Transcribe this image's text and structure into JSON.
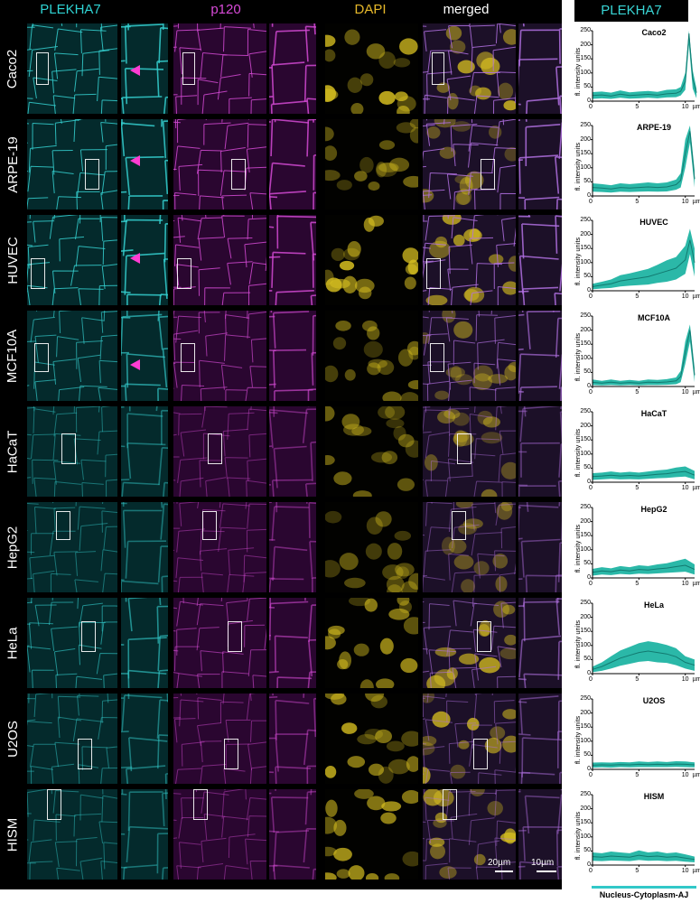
{
  "column_headers": [
    {
      "text": "PLEKHA7",
      "color": "#2fd3d3"
    },
    {
      "text": "p120",
      "color": "#d84ad8"
    },
    {
      "text": "DAPI",
      "color": "#e6b82a"
    },
    {
      "text": "merged",
      "color": "#ffffff"
    }
  ],
  "right_header": "PLEKHA7",
  "rows": [
    {
      "label": "Caco2",
      "arrow": true
    },
    {
      "label": "ARPE-19",
      "arrow": true
    },
    {
      "label": "HUVEC",
      "arrow": true
    },
    {
      "label": "MCF10A",
      "arrow": true
    },
    {
      "label": "HaCaT",
      "arrow": false
    },
    {
      "label": "HepG2",
      "arrow": false
    },
    {
      "label": "HeLa",
      "arrow": false
    },
    {
      "label": "U2OS",
      "arrow": false
    },
    {
      "label": "HISM",
      "arrow": false
    }
  ],
  "scale_bars": [
    "20µm",
    "10µm"
  ],
  "axis_title": "fl. intensity units",
  "x_unit": "µm",
  "bottom_label": "Nucleus-Cytoplasm-AJ",
  "chart_data": [
    {
      "type": "area",
      "title": "Caco2",
      "xlabel": "",
      "ylabel": "fl. intensity units",
      "xlim": [
        0,
        11
      ],
      "ylim": [
        0,
        250
      ],
      "xticks": [
        0,
        5,
        10
      ],
      "yticks": [
        0,
        50,
        100,
        150,
        200,
        250
      ],
      "x": [
        0,
        1,
        2,
        3,
        4,
        5,
        6,
        7,
        8,
        9,
        9.5,
        10,
        10.4,
        10.8,
        11.2
      ],
      "y": [
        20,
        22,
        18,
        25,
        20,
        22,
        24,
        21,
        26,
        28,
        35,
        70,
        240,
        80,
        30
      ],
      "y_low": [
        8,
        10,
        8,
        12,
        9,
        10,
        12,
        10,
        13,
        14,
        20,
        40,
        200,
        45,
        10
      ],
      "y_high": [
        32,
        34,
        30,
        38,
        31,
        34,
        36,
        33,
        40,
        42,
        50,
        100,
        250,
        110,
        45
      ]
    },
    {
      "type": "area",
      "title": "ARPE-19",
      "xlabel": "",
      "ylabel": "fl. intensity units",
      "xlim": [
        0,
        11
      ],
      "ylim": [
        0,
        250
      ],
      "xticks": [
        0,
        5,
        10
      ],
      "yticks": [
        0,
        50,
        100,
        150,
        200,
        250
      ],
      "x": [
        0,
        1,
        2,
        3,
        4,
        5,
        6,
        7,
        8,
        9,
        9.5,
        10,
        10.5,
        11
      ],
      "y": [
        30,
        28,
        25,
        30,
        28,
        30,
        32,
        30,
        32,
        40,
        55,
        150,
        230,
        60
      ],
      "y_low": [
        15,
        14,
        12,
        15,
        14,
        15,
        16,
        15,
        16,
        22,
        30,
        100,
        190,
        30
      ],
      "y_high": [
        45,
        42,
        38,
        45,
        42,
        45,
        48,
        45,
        48,
        58,
        80,
        200,
        250,
        90
      ]
    },
    {
      "type": "area",
      "title": "HUVEC",
      "xlabel": "",
      "ylabel": "fl. intensity units",
      "xlim": [
        0,
        11
      ],
      "ylim": [
        0,
        250
      ],
      "xticks": [
        0,
        5,
        10
      ],
      "yticks": [
        0,
        50,
        100,
        150,
        200,
        250
      ],
      "x": [
        0,
        1,
        2,
        3,
        4,
        5,
        6,
        7,
        8,
        9,
        10,
        10.5,
        11
      ],
      "y": [
        15,
        20,
        25,
        35,
        40,
        45,
        50,
        60,
        70,
        80,
        110,
        180,
        100
      ],
      "y_low": [
        5,
        8,
        10,
        15,
        18,
        20,
        22,
        28,
        32,
        40,
        60,
        130,
        50
      ],
      "y_high": [
        25,
        32,
        40,
        55,
        62,
        70,
        78,
        92,
        108,
        120,
        160,
        220,
        150
      ]
    },
    {
      "type": "area",
      "title": "MCF10A",
      "xlabel": "",
      "ylabel": "fl. intensity units",
      "xlim": [
        0,
        11
      ],
      "ylim": [
        0,
        250
      ],
      "xticks": [
        0,
        5,
        10
      ],
      "yticks": [
        0,
        50,
        100,
        150,
        200,
        250
      ],
      "x": [
        0,
        1,
        2,
        3,
        4,
        5,
        6,
        7,
        8,
        9,
        9.5,
        10,
        10.5,
        11
      ],
      "y": [
        15,
        12,
        15,
        12,
        14,
        12,
        15,
        14,
        16,
        20,
        35,
        120,
        200,
        40
      ],
      "y_low": [
        5,
        4,
        5,
        4,
        5,
        4,
        5,
        5,
        6,
        8,
        15,
        80,
        160,
        15
      ],
      "y_high": [
        25,
        20,
        25,
        20,
        23,
        20,
        25,
        23,
        26,
        32,
        55,
        160,
        220,
        65
      ]
    },
    {
      "type": "area",
      "title": "HaCaT",
      "xlabel": "",
      "ylabel": "fl. intensity units",
      "xlim": [
        0,
        11
      ],
      "ylim": [
        0,
        250
      ],
      "xticks": [
        0,
        5,
        10
      ],
      "yticks": [
        0,
        50,
        100,
        150,
        200,
        250
      ],
      "x": [
        0,
        1,
        2,
        3,
        4,
        5,
        6,
        7,
        8,
        9,
        10,
        11
      ],
      "y": [
        20,
        22,
        25,
        22,
        24,
        22,
        25,
        28,
        30,
        35,
        38,
        25
      ],
      "y_low": [
        8,
        10,
        12,
        10,
        11,
        10,
        12,
        14,
        15,
        18,
        20,
        10
      ],
      "y_high": [
        32,
        34,
        38,
        34,
        37,
        34,
        38,
        42,
        45,
        52,
        56,
        40
      ]
    },
    {
      "type": "area",
      "title": "HepG2",
      "xlabel": "",
      "ylabel": "fl. intensity units",
      "xlim": [
        0,
        11
      ],
      "ylim": [
        0,
        250
      ],
      "xticks": [
        0,
        5,
        10
      ],
      "yticks": [
        0,
        50,
        100,
        150,
        200,
        250
      ],
      "x": [
        0,
        1,
        2,
        3,
        4,
        5,
        6,
        7,
        8,
        9,
        10,
        11
      ],
      "y": [
        20,
        25,
        22,
        28,
        25,
        30,
        28,
        32,
        35,
        40,
        45,
        30
      ],
      "y_low": [
        8,
        12,
        10,
        14,
        12,
        15,
        14,
        16,
        18,
        20,
        22,
        12
      ],
      "y_high": [
        32,
        38,
        34,
        42,
        38,
        45,
        42,
        48,
        52,
        60,
        68,
        48
      ]
    },
    {
      "type": "area",
      "title": "HeLa",
      "xlabel": "",
      "ylabel": "fl. intensity units",
      "xlim": [
        0,
        11
      ],
      "ylim": [
        0,
        250
      ],
      "xticks": [
        0,
        5,
        10
      ],
      "yticks": [
        0,
        50,
        100,
        150,
        200,
        250
      ],
      "x": [
        0,
        1,
        2,
        3,
        4,
        5,
        6,
        7,
        8,
        9,
        10,
        11
      ],
      "y": [
        15,
        25,
        40,
        55,
        65,
        75,
        80,
        75,
        70,
        60,
        40,
        30
      ],
      "y_low": [
        5,
        10,
        18,
        28,
        35,
        42,
        45,
        40,
        38,
        30,
        18,
        10
      ],
      "y_high": [
        25,
        40,
        62,
        82,
        95,
        108,
        115,
        110,
        102,
        90,
        62,
        50
      ]
    },
    {
      "type": "area",
      "title": "U2OS",
      "xlabel": "",
      "ylabel": "fl. intensity units",
      "xlim": [
        0,
        11
      ],
      "ylim": [
        0,
        250
      ],
      "xticks": [
        0,
        5,
        10
      ],
      "yticks": [
        0,
        50,
        100,
        150,
        200,
        250
      ],
      "x": [
        0,
        1,
        2,
        3,
        4,
        5,
        6,
        7,
        8,
        9,
        10,
        11
      ],
      "y": [
        15,
        16,
        15,
        17,
        16,
        18,
        17,
        18,
        17,
        19,
        18,
        16
      ],
      "y_low": [
        6,
        7,
        6,
        8,
        7,
        8,
        8,
        8,
        8,
        9,
        8,
        7
      ],
      "y_high": [
        24,
        25,
        24,
        26,
        25,
        28,
        26,
        28,
        26,
        29,
        28,
        25
      ]
    },
    {
      "type": "area",
      "title": "HISM",
      "xlabel": "",
      "ylabel": "fl. intensity units",
      "xlim": [
        0,
        11
      ],
      "ylim": [
        0,
        250
      ],
      "xticks": [
        0,
        5,
        10
      ],
      "yticks": [
        0,
        50,
        100,
        150,
        200,
        250
      ],
      "x": [
        0,
        1,
        2,
        3,
        4,
        5,
        6,
        7,
        8,
        9,
        10,
        11
      ],
      "y": [
        30,
        28,
        32,
        30,
        28,
        35,
        30,
        32,
        28,
        30,
        25,
        20
      ],
      "y_low": [
        15,
        14,
        16,
        15,
        14,
        18,
        15,
        16,
        14,
        15,
        12,
        10
      ],
      "y_high": [
        45,
        42,
        48,
        45,
        42,
        52,
        45,
        48,
        42,
        45,
        38,
        30
      ]
    }
  ]
}
